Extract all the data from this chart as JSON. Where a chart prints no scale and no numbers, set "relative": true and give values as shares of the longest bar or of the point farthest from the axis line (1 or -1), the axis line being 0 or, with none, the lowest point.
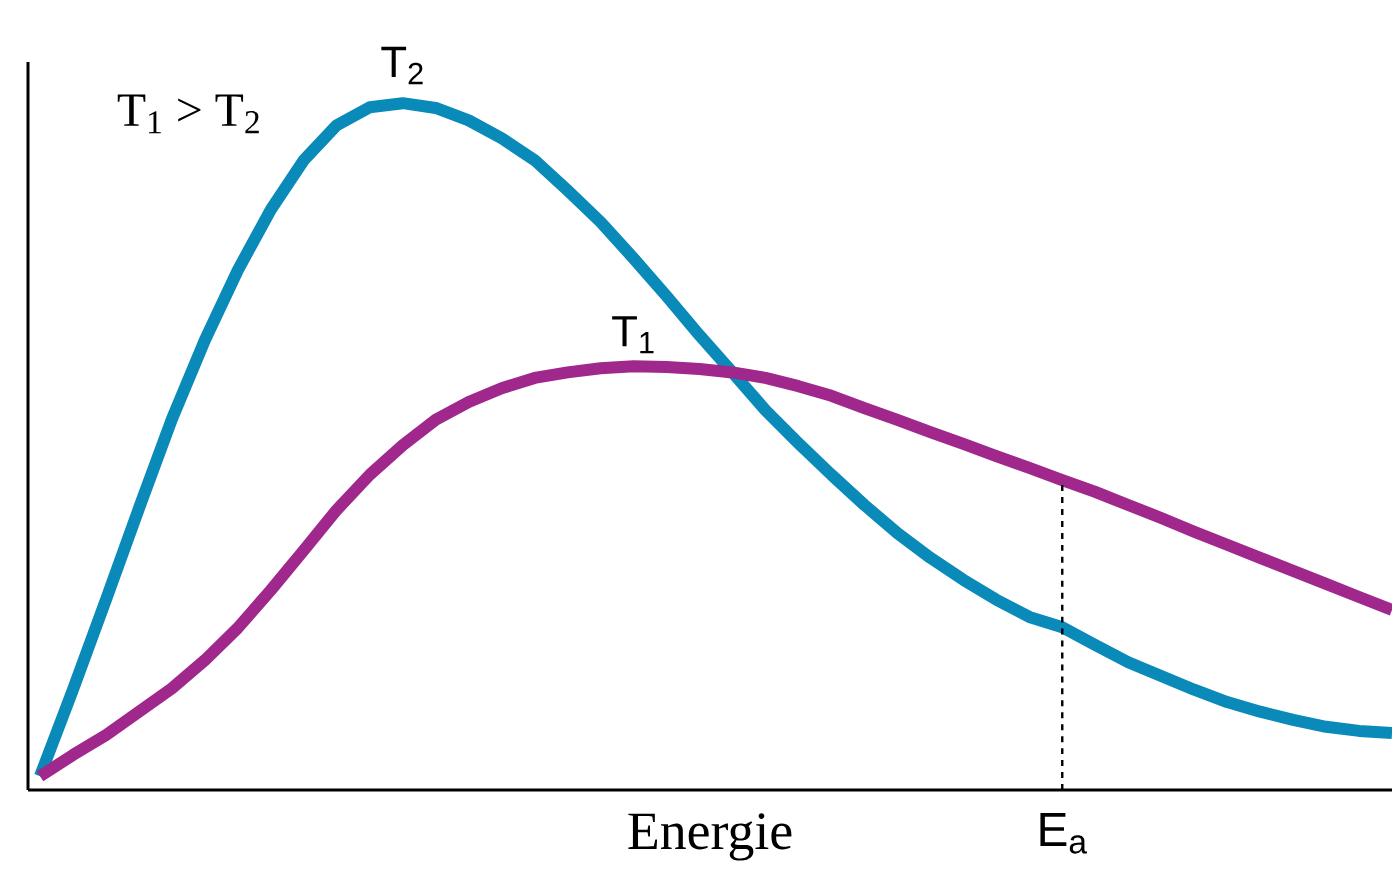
{
  "chart_data": {
    "type": "line",
    "relative": true,
    "marker": "none",
    "xlabel": "Energie",
    "categories": [
      null,
      null,
      null,
      null,
      null,
      null,
      null,
      null,
      null,
      null,
      null,
      null,
      null,
      null,
      null,
      null,
      null,
      null,
      null,
      null,
      null,
      null,
      null,
      null,
      null,
      null,
      null,
      null,
      null,
      null,
      null,
      null,
      null,
      null,
      null,
      null,
      null,
      null,
      null,
      null,
      null,
      null
    ],
    "series": [
      {
        "name": "T$_{2}$",
        "color": "#0a8ab8",
        "values": [
          0.02,
          0.146,
          0.277,
          0.41,
          0.54,
          0.655,
          0.757,
          0.845,
          0.917,
          0.968,
          0.994,
          1.0,
          0.993,
          0.975,
          0.949,
          0.917,
          0.873,
          0.827,
          0.774,
          0.719,
          0.662,
          0.608,
          0.553,
          0.505,
          0.459,
          0.415,
          0.374,
          0.338,
          0.306,
          0.277,
          0.252,
          0.237,
          0.211,
          0.186,
          0.166,
          0.146,
          0.128,
          0.114,
          0.102,
          0.092,
          0.086,
          0.083
        ]
      },
      {
        "name": "T$_{1}$",
        "color": "#a0288c",
        "values": [
          0.02,
          0.051,
          0.08,
          0.114,
          0.148,
          0.189,
          0.236,
          0.291,
          0.349,
          0.408,
          0.459,
          0.502,
          0.539,
          0.565,
          0.585,
          0.6,
          0.608,
          0.614,
          0.617,
          0.616,
          0.613,
          0.608,
          0.6,
          0.588,
          0.574,
          0.556,
          0.539,
          0.521,
          0.504,
          0.486,
          0.469,
          0.451,
          0.434,
          0.415,
          0.396,
          0.376,
          0.357,
          0.338,
          0.319,
          0.3,
          0.281,
          0.262
        ]
      }
    ],
    "annotations": [
      "T$_{1}$ > T$_{2}$",
      "E$_{a}$"
    ]
  }
}
